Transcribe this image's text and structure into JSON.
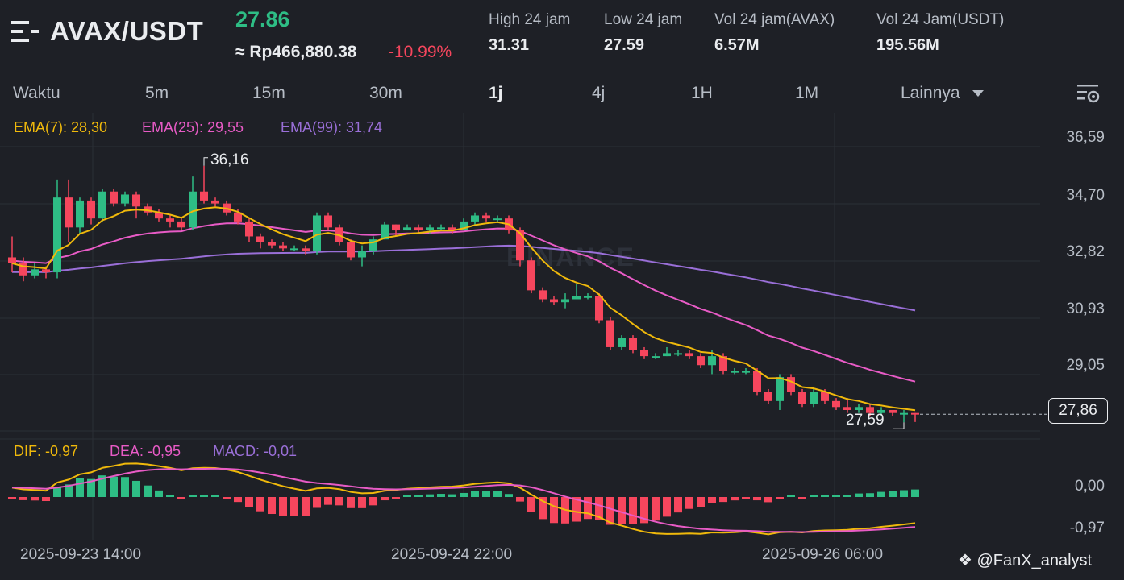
{
  "header": {
    "pair": "AVAX/USDT",
    "last_price": "27.86",
    "fiat_price": "≈ Rp466,880.38",
    "change_pct": "-10.99%",
    "stats": [
      {
        "label": "High 24 jam",
        "value": "31.31"
      },
      {
        "label": "Low 24 jam",
        "value": "27.59"
      },
      {
        "label": "Vol 24 jam(AVAX)",
        "value": "6.57M"
      },
      {
        "label": "Vol 24 Jam(USDT)",
        "value": "195.56M"
      }
    ]
  },
  "intervals": {
    "label": "Waktu",
    "items": [
      "5m",
      "15m",
      "30m",
      "1j",
      "4j",
      "1H",
      "1M"
    ],
    "active": "1j",
    "more": "Lainnya"
  },
  "legend": {
    "ema7": "EMA(7): 28,30",
    "ema25": "EMA(25): 29,55",
    "ema99": "EMA(99): 31,74",
    "dif": "DIF: -0,97",
    "dea": "DEA: -0,95",
    "macd": "MACD: -0,01"
  },
  "colors": {
    "bg": "#1e2026",
    "up": "#2ebd85",
    "down": "#f6465d",
    "ema7": "#f0b90b",
    "ema25": "#e85bc6",
    "ema99": "#9a6fd8"
  },
  "watermark": "BINANCE",
  "credit": "@FanX_analyst",
  "price_tag": "27,86",
  "chart_data": {
    "type": "candlestick",
    "y_ticks": [
      "36,59",
      "34,70",
      "32,82",
      "30,93",
      "29,05"
    ],
    "macd_ticks": [
      "0,00",
      "-0,97"
    ],
    "x_ticks": [
      "2025-09-23 14:00",
      "2025-09-24 22:00",
      "2025-09-26 06:00"
    ],
    "high_marker": "36,16",
    "low_marker": "27,59",
    "ylim": [
      27.3,
      36.8
    ],
    "candles": [
      [
        33.1,
        32.9,
        33.8,
        32.6
      ],
      [
        32.9,
        32.5,
        33.1,
        32.3
      ],
      [
        32.5,
        32.7,
        32.9,
        32.4
      ],
      [
        32.7,
        32.6,
        32.8,
        32.4
      ],
      [
        32.6,
        35.1,
        35.7,
        32.4
      ],
      [
        35.1,
        34.1,
        35.7,
        33.6
      ],
      [
        34.1,
        35.0,
        35.1,
        33.9
      ],
      [
        35.0,
        34.4,
        35.1,
        34.2
      ],
      [
        34.4,
        35.3,
        35.4,
        34.3
      ],
      [
        35.3,
        34.9,
        35.4,
        34.8
      ],
      [
        34.9,
        35.2,
        35.3,
        34.8
      ],
      [
        35.2,
        34.8,
        35.3,
        34.4
      ],
      [
        34.8,
        34.6,
        34.9,
        34.5
      ],
      [
        34.6,
        34.4,
        34.7,
        34.3
      ],
      [
        34.4,
        34.3,
        34.5,
        34.1
      ],
      [
        34.3,
        34.1,
        34.4,
        34.0
      ],
      [
        34.1,
        35.3,
        35.8,
        34.0
      ],
      [
        35.3,
        35.0,
        36.16,
        34.9
      ],
      [
        35.0,
        34.9,
        35.1,
        34.8
      ],
      [
        34.9,
        34.6,
        35.0,
        34.5
      ],
      [
        34.6,
        34.3,
        34.7,
        34.2
      ],
      [
        34.3,
        33.8,
        34.4,
        33.6
      ],
      [
        33.8,
        33.6,
        33.9,
        33.4
      ],
      [
        33.6,
        33.5,
        33.7,
        33.4
      ],
      [
        33.5,
        33.4,
        33.6,
        33.3
      ],
      [
        33.4,
        33.4,
        33.5,
        33.3
      ],
      [
        33.4,
        33.3,
        33.5,
        33.2
      ],
      [
        33.3,
        34.5,
        34.6,
        33.2
      ],
      [
        34.5,
        34.1,
        34.6,
        34.0
      ],
      [
        34.1,
        33.6,
        34.2,
        33.5
      ],
      [
        33.6,
        33.1,
        33.7,
        33.0
      ],
      [
        33.1,
        33.3,
        33.5,
        32.8
      ],
      [
        33.3,
        33.7,
        33.8,
        33.2
      ],
      [
        33.7,
        34.2,
        34.3,
        33.7
      ],
      [
        34.2,
        34.0,
        34.2,
        33.8
      ],
      [
        34.0,
        34.1,
        34.2,
        34.0
      ],
      [
        34.1,
        34.0,
        34.2,
        33.9
      ],
      [
        34.0,
        34.1,
        34.2,
        33.9
      ],
      [
        34.1,
        34.1,
        34.2,
        34.0
      ],
      [
        34.1,
        34.0,
        34.2,
        33.9
      ],
      [
        34.0,
        34.3,
        34.4,
        34.0
      ],
      [
        34.3,
        34.5,
        34.6,
        34.2
      ],
      [
        34.5,
        34.4,
        34.6,
        34.3
      ],
      [
        34.4,
        34.4,
        34.5,
        34.3
      ],
      [
        34.4,
        34.0,
        34.5,
        33.9
      ],
      [
        34.0,
        33.0,
        34.1,
        32.8
      ],
      [
        33.0,
        32.0,
        33.1,
        31.9
      ],
      [
        32.0,
        31.7,
        32.1,
        31.6
      ],
      [
        31.7,
        31.6,
        31.8,
        31.5
      ],
      [
        31.6,
        31.7,
        31.9,
        31.4
      ],
      [
        31.7,
        31.8,
        32.2,
        31.7
      ],
      [
        31.8,
        31.8,
        31.9,
        31.7
      ],
      [
        31.8,
        31.0,
        31.9,
        30.9
      ],
      [
        31.0,
        30.1,
        31.1,
        30.0
      ],
      [
        30.1,
        30.4,
        30.5,
        30.0
      ],
      [
        30.4,
        30.0,
        30.5,
        29.9
      ],
      [
        30.0,
        29.8,
        30.1,
        29.7
      ],
      [
        29.8,
        29.8,
        29.9,
        29.7
      ],
      [
        29.8,
        29.9,
        30.1,
        29.8
      ],
      [
        29.9,
        29.9,
        30.0,
        29.8
      ],
      [
        29.9,
        29.8,
        30.0,
        29.7
      ],
      [
        29.8,
        29.5,
        29.9,
        29.4
      ],
      [
        29.5,
        29.8,
        30.0,
        29.2
      ],
      [
        29.8,
        29.3,
        29.9,
        29.2
      ],
      [
        29.3,
        29.3,
        29.4,
        29.2
      ],
      [
        29.3,
        29.3,
        29.4,
        29.2
      ],
      [
        29.3,
        28.6,
        29.4,
        28.5
      ],
      [
        28.6,
        28.3,
        28.7,
        28.2
      ],
      [
        28.3,
        29.1,
        29.2,
        28.0
      ],
      [
        29.1,
        28.6,
        29.2,
        28.5
      ],
      [
        28.6,
        28.2,
        28.7,
        28.1
      ],
      [
        28.2,
        28.6,
        28.7,
        28.1
      ],
      [
        28.6,
        28.3,
        28.7,
        28.2
      ],
      [
        28.3,
        28.1,
        28.4,
        28.0
      ],
      [
        28.1,
        28.0,
        28.4,
        27.9
      ],
      [
        28.0,
        28.1,
        28.2,
        27.9
      ],
      [
        28.1,
        27.9,
        28.2,
        27.8
      ],
      [
        27.9,
        28.0,
        28.1,
        27.8
      ],
      [
        28.0,
        27.9,
        28.0,
        27.8
      ],
      [
        27.9,
        27.9,
        28.0,
        27.59
      ],
      [
        27.9,
        27.86,
        27.9,
        27.6
      ]
    ]
  }
}
